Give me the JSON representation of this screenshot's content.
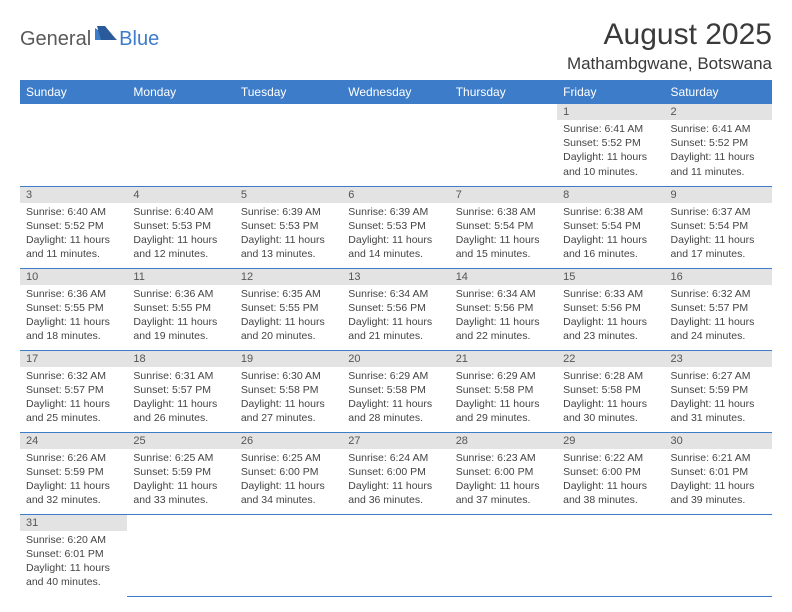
{
  "logo": {
    "general": "General",
    "blue": "Blue"
  },
  "title": {
    "month": "August 2025",
    "location": "Mathambgwane, Botswana"
  },
  "colors": {
    "header_bg": "#3d7cc9",
    "header_fg": "#ffffff",
    "daynum_bg": "#e3e3e3",
    "row_divider": "#3d7cc9",
    "text": "#444444"
  },
  "weekdays": [
    "Sunday",
    "Monday",
    "Tuesday",
    "Wednesday",
    "Thursday",
    "Friday",
    "Saturday"
  ],
  "weeks": [
    [
      null,
      null,
      null,
      null,
      null,
      {
        "n": "1",
        "sr": "Sunrise: 6:41 AM",
        "ss": "Sunset: 5:52 PM",
        "dl": "Daylight: 11 hours and 10 minutes."
      },
      {
        "n": "2",
        "sr": "Sunrise: 6:41 AM",
        "ss": "Sunset: 5:52 PM",
        "dl": "Daylight: 11 hours and 11 minutes."
      }
    ],
    [
      {
        "n": "3",
        "sr": "Sunrise: 6:40 AM",
        "ss": "Sunset: 5:52 PM",
        "dl": "Daylight: 11 hours and 11 minutes."
      },
      {
        "n": "4",
        "sr": "Sunrise: 6:40 AM",
        "ss": "Sunset: 5:53 PM",
        "dl": "Daylight: 11 hours and 12 minutes."
      },
      {
        "n": "5",
        "sr": "Sunrise: 6:39 AM",
        "ss": "Sunset: 5:53 PM",
        "dl": "Daylight: 11 hours and 13 minutes."
      },
      {
        "n": "6",
        "sr": "Sunrise: 6:39 AM",
        "ss": "Sunset: 5:53 PM",
        "dl": "Daylight: 11 hours and 14 minutes."
      },
      {
        "n": "7",
        "sr": "Sunrise: 6:38 AM",
        "ss": "Sunset: 5:54 PM",
        "dl": "Daylight: 11 hours and 15 minutes."
      },
      {
        "n": "8",
        "sr": "Sunrise: 6:38 AM",
        "ss": "Sunset: 5:54 PM",
        "dl": "Daylight: 11 hours and 16 minutes."
      },
      {
        "n": "9",
        "sr": "Sunrise: 6:37 AM",
        "ss": "Sunset: 5:54 PM",
        "dl": "Daylight: 11 hours and 17 minutes."
      }
    ],
    [
      {
        "n": "10",
        "sr": "Sunrise: 6:36 AM",
        "ss": "Sunset: 5:55 PM",
        "dl": "Daylight: 11 hours and 18 minutes."
      },
      {
        "n": "11",
        "sr": "Sunrise: 6:36 AM",
        "ss": "Sunset: 5:55 PM",
        "dl": "Daylight: 11 hours and 19 minutes."
      },
      {
        "n": "12",
        "sr": "Sunrise: 6:35 AM",
        "ss": "Sunset: 5:55 PM",
        "dl": "Daylight: 11 hours and 20 minutes."
      },
      {
        "n": "13",
        "sr": "Sunrise: 6:34 AM",
        "ss": "Sunset: 5:56 PM",
        "dl": "Daylight: 11 hours and 21 minutes."
      },
      {
        "n": "14",
        "sr": "Sunrise: 6:34 AM",
        "ss": "Sunset: 5:56 PM",
        "dl": "Daylight: 11 hours and 22 minutes."
      },
      {
        "n": "15",
        "sr": "Sunrise: 6:33 AM",
        "ss": "Sunset: 5:56 PM",
        "dl": "Daylight: 11 hours and 23 minutes."
      },
      {
        "n": "16",
        "sr": "Sunrise: 6:32 AM",
        "ss": "Sunset: 5:57 PM",
        "dl": "Daylight: 11 hours and 24 minutes."
      }
    ],
    [
      {
        "n": "17",
        "sr": "Sunrise: 6:32 AM",
        "ss": "Sunset: 5:57 PM",
        "dl": "Daylight: 11 hours and 25 minutes."
      },
      {
        "n": "18",
        "sr": "Sunrise: 6:31 AM",
        "ss": "Sunset: 5:57 PM",
        "dl": "Daylight: 11 hours and 26 minutes."
      },
      {
        "n": "19",
        "sr": "Sunrise: 6:30 AM",
        "ss": "Sunset: 5:58 PM",
        "dl": "Daylight: 11 hours and 27 minutes."
      },
      {
        "n": "20",
        "sr": "Sunrise: 6:29 AM",
        "ss": "Sunset: 5:58 PM",
        "dl": "Daylight: 11 hours and 28 minutes."
      },
      {
        "n": "21",
        "sr": "Sunrise: 6:29 AM",
        "ss": "Sunset: 5:58 PM",
        "dl": "Daylight: 11 hours and 29 minutes."
      },
      {
        "n": "22",
        "sr": "Sunrise: 6:28 AM",
        "ss": "Sunset: 5:58 PM",
        "dl": "Daylight: 11 hours and 30 minutes."
      },
      {
        "n": "23",
        "sr": "Sunrise: 6:27 AM",
        "ss": "Sunset: 5:59 PM",
        "dl": "Daylight: 11 hours and 31 minutes."
      }
    ],
    [
      {
        "n": "24",
        "sr": "Sunrise: 6:26 AM",
        "ss": "Sunset: 5:59 PM",
        "dl": "Daylight: 11 hours and 32 minutes."
      },
      {
        "n": "25",
        "sr": "Sunrise: 6:25 AM",
        "ss": "Sunset: 5:59 PM",
        "dl": "Daylight: 11 hours and 33 minutes."
      },
      {
        "n": "26",
        "sr": "Sunrise: 6:25 AM",
        "ss": "Sunset: 6:00 PM",
        "dl": "Daylight: 11 hours and 34 minutes."
      },
      {
        "n": "27",
        "sr": "Sunrise: 6:24 AM",
        "ss": "Sunset: 6:00 PM",
        "dl": "Daylight: 11 hours and 36 minutes."
      },
      {
        "n": "28",
        "sr": "Sunrise: 6:23 AM",
        "ss": "Sunset: 6:00 PM",
        "dl": "Daylight: 11 hours and 37 minutes."
      },
      {
        "n": "29",
        "sr": "Sunrise: 6:22 AM",
        "ss": "Sunset: 6:00 PM",
        "dl": "Daylight: 11 hours and 38 minutes."
      },
      {
        "n": "30",
        "sr": "Sunrise: 6:21 AM",
        "ss": "Sunset: 6:01 PM",
        "dl": "Daylight: 11 hours and 39 minutes."
      }
    ],
    [
      {
        "n": "31",
        "sr": "Sunrise: 6:20 AM",
        "ss": "Sunset: 6:01 PM",
        "dl": "Daylight: 11 hours and 40 minutes."
      },
      null,
      null,
      null,
      null,
      null,
      null
    ]
  ]
}
